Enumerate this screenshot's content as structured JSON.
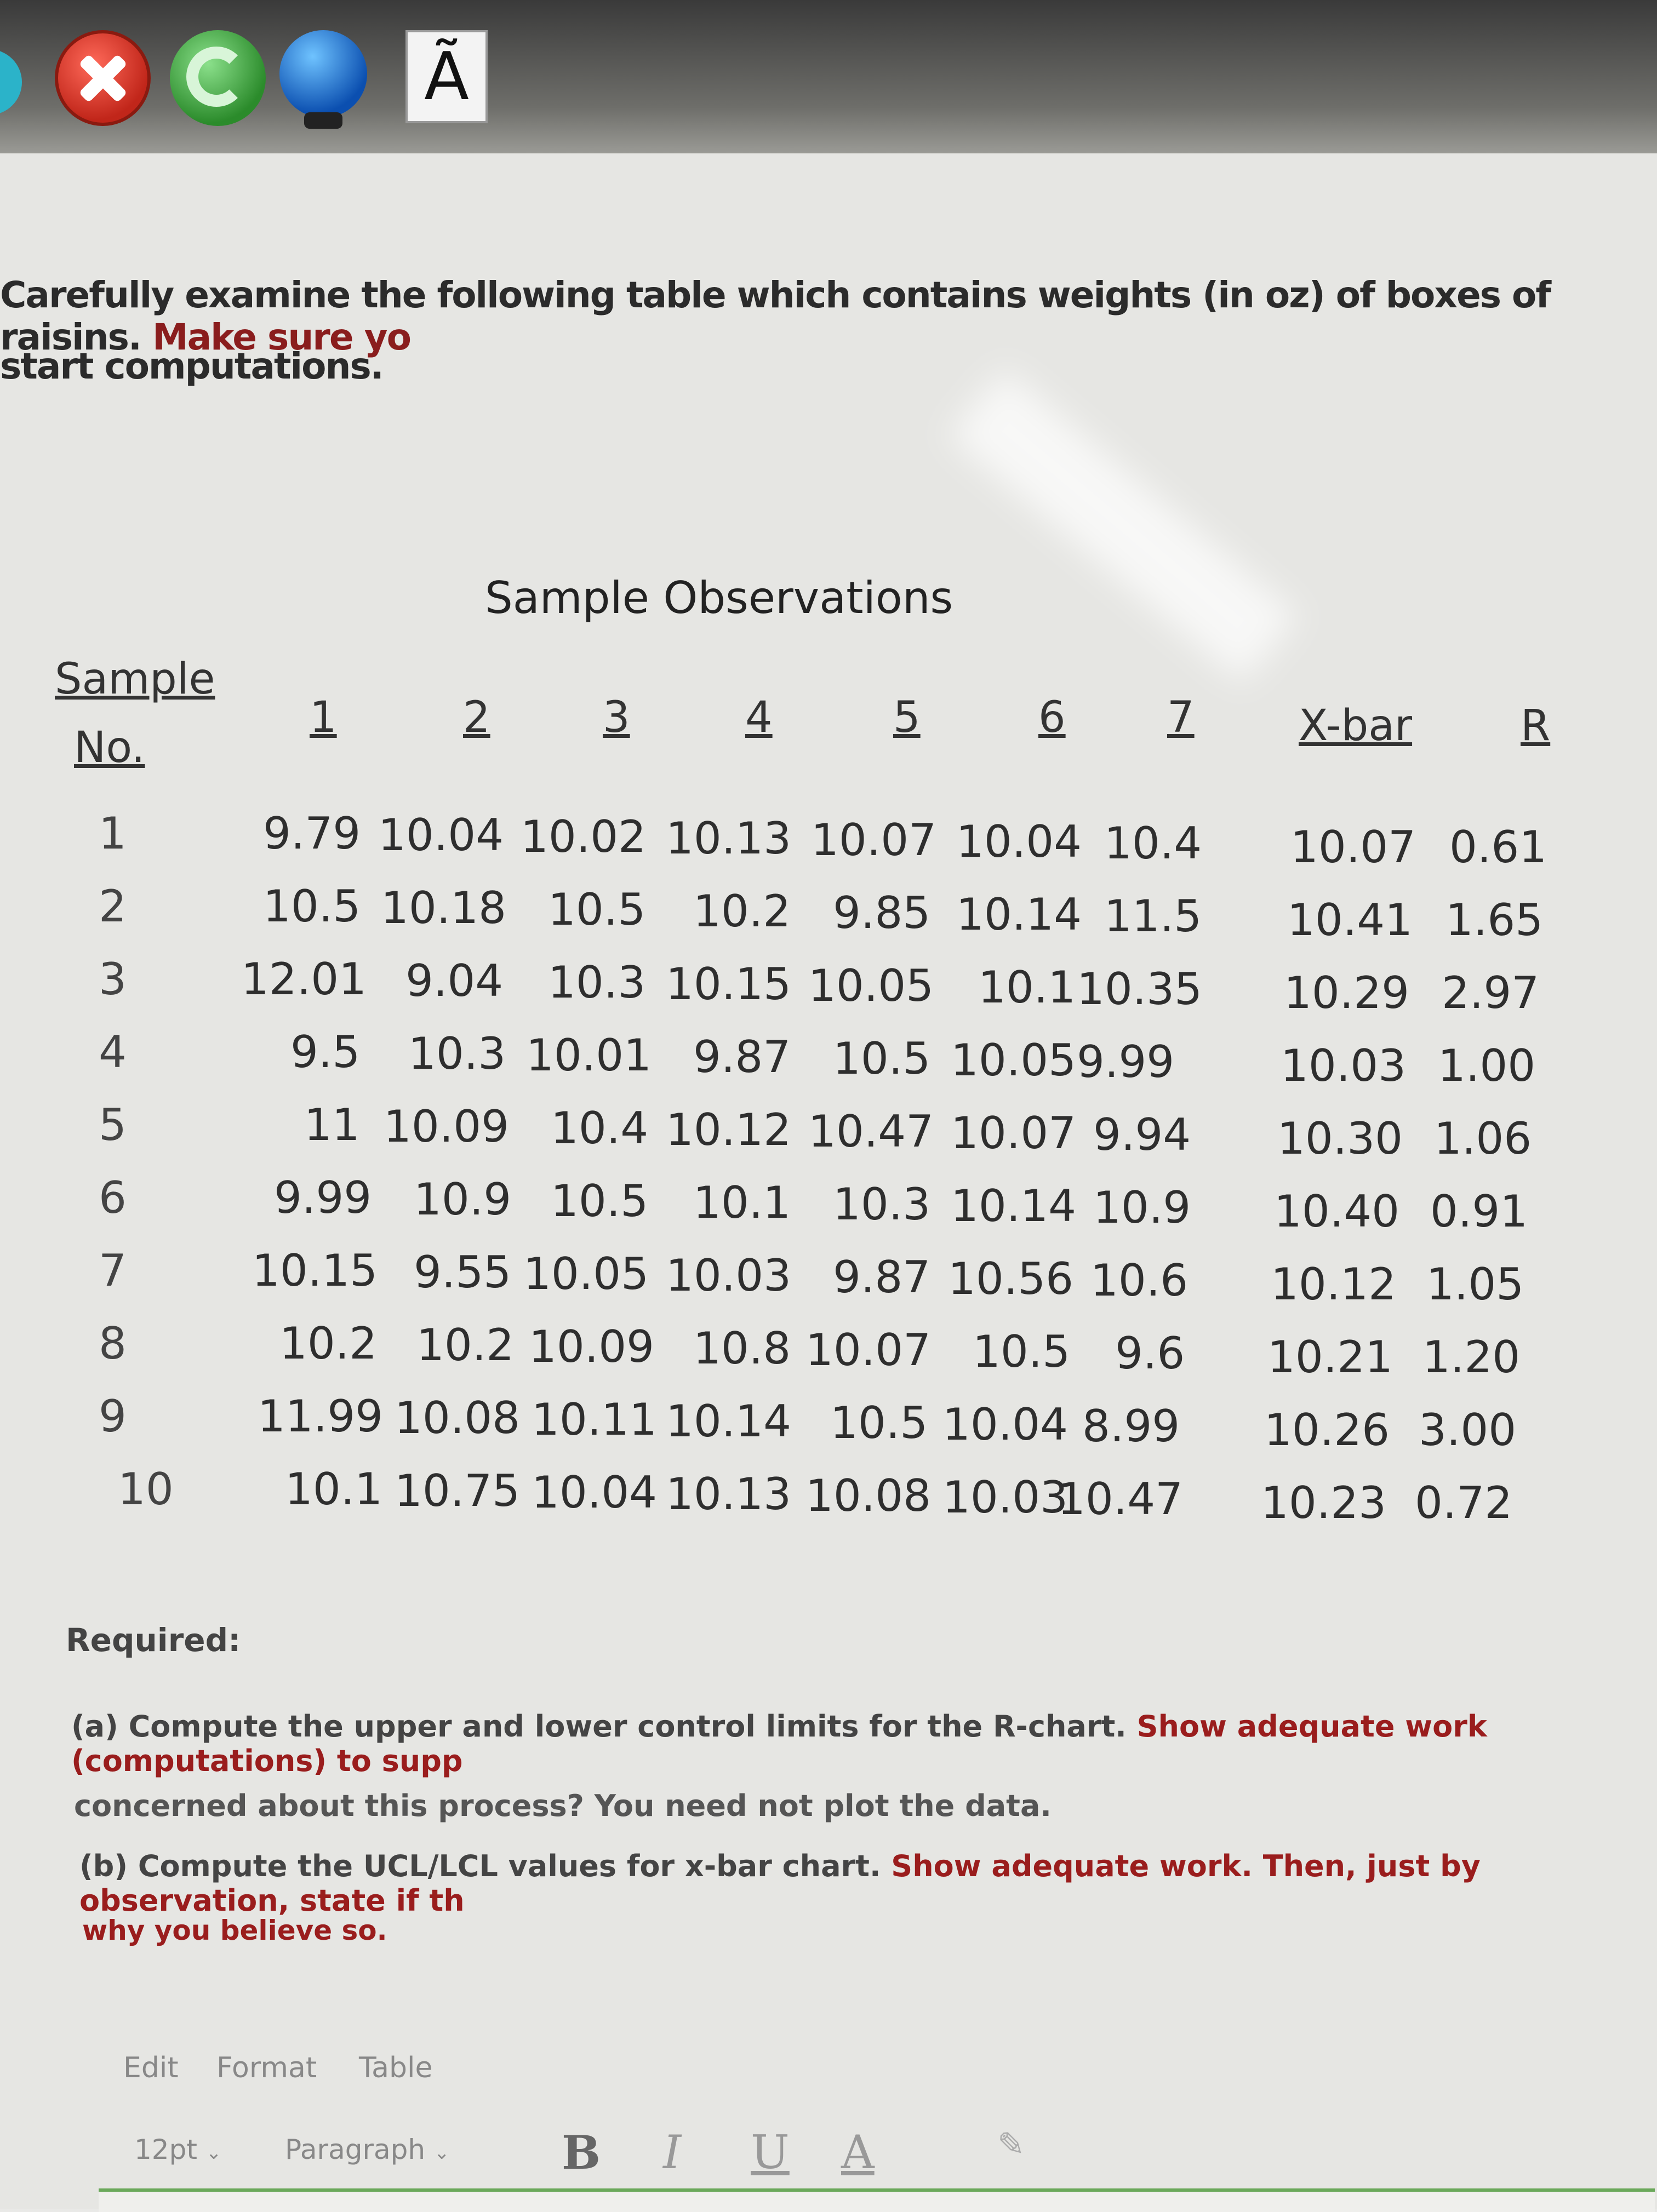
{
  "toolbar": {
    "icons": [
      "close-icon",
      "refresh-icon",
      "globe-icon",
      "font-icon"
    ],
    "font_glyph": "Ã"
  },
  "intro": {
    "line1_part1": "Carefully examine the following table which contains weights (in oz) of boxes of raisins.",
    "line1_part2": "Make sure yo",
    "line2": "start computations."
  },
  "table": {
    "title": "Sample Observations",
    "sample_header_line1": "Sample",
    "sample_header_line2": "No.",
    "col_headers": [
      "1",
      "2",
      "3",
      "4",
      "5",
      "6",
      "7"
    ],
    "xbar_header": "X-bar",
    "r_header": "R",
    "rows": [
      {
        "no": "1",
        "obs": [
          "9.79",
          "10.04",
          "10.02",
          "10.13",
          "10.07",
          "10.04",
          "10.4"
        ],
        "xbar": "10.07",
        "r": "0.61"
      },
      {
        "no": "2",
        "obs": [
          "10.5",
          "10.18",
          "10.5",
          "10.2",
          "9.85",
          "10.14",
          "11.5"
        ],
        "xbar": "10.41",
        "r": "1.65"
      },
      {
        "no": "3",
        "obs": [
          "12.01",
          "9.04",
          "10.3",
          "10.15",
          "10.05",
          "10.1",
          "10.35"
        ],
        "xbar": "10.29",
        "r": "2.97"
      },
      {
        "no": "4",
        "obs": [
          "9.5",
          "10.3",
          "10.01",
          "9.87",
          "10.5",
          "10.05",
          "9.99"
        ],
        "xbar": "10.03",
        "r": "1.00"
      },
      {
        "no": "5",
        "obs": [
          "11",
          "10.09",
          "10.4",
          "10.12",
          "10.47",
          "10.07",
          "9.94"
        ],
        "xbar": "10.30",
        "r": "1.06"
      },
      {
        "no": "6",
        "obs": [
          "9.99",
          "10.9",
          "10.5",
          "10.1",
          "10.3",
          "10.14",
          "10.9"
        ],
        "xbar": "10.40",
        "r": "0.91"
      },
      {
        "no": "7",
        "obs": [
          "10.15",
          "9.55",
          "10.05",
          "10.03",
          "9.87",
          "10.56",
          "10.6"
        ],
        "xbar": "10.12",
        "r": "1.05"
      },
      {
        "no": "8",
        "obs": [
          "10.2",
          "10.2",
          "10.09",
          "10.8",
          "10.07",
          "10.5",
          "9.6"
        ],
        "xbar": "10.21",
        "r": "1.20"
      },
      {
        "no": "9",
        "obs": [
          "11.99",
          "10.08",
          "10.11",
          "10.14",
          "10.5",
          "10.04",
          "8.99"
        ],
        "xbar": "10.26",
        "r": "3.00"
      },
      {
        "no": "10",
        "obs": [
          "10.1",
          "10.75",
          "10.04",
          "10.13",
          "10.08",
          "10.03",
          "10.47"
        ],
        "xbar": "10.23",
        "r": "0.72"
      }
    ]
  },
  "required": {
    "label": "Required:",
    "a_prefix": "(a) Compute the upper and lower control limits for the R-chart.",
    "a_red": "Show adequate work (computations) to supp",
    "a_line2": "concerned about this process? You need not plot the data.",
    "b_prefix": "(b) Compute the UCL/LCL values for x-bar chart.",
    "b_red": "Show adequate work. Then, just by observation, state if th",
    "b_line2": "why you believe so."
  },
  "editor": {
    "menu_items": [
      "Edit",
      "Format",
      "Table"
    ],
    "font_size": "12pt",
    "block_format": "Paragraph",
    "format_buttons": [
      "B",
      "I",
      "U",
      "A"
    ]
  }
}
